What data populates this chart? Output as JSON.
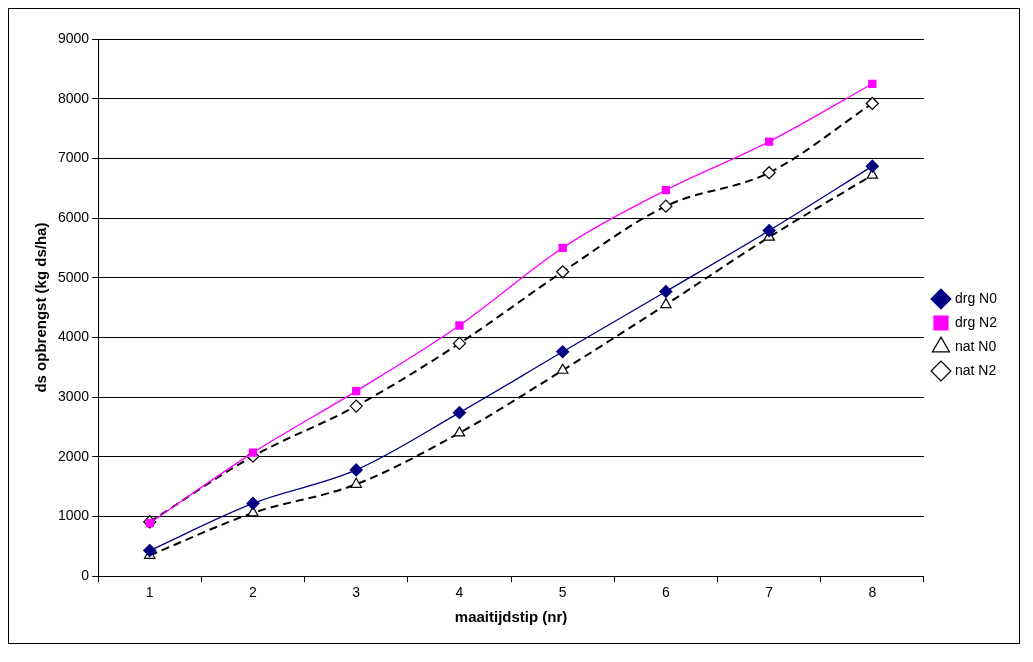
{
  "chart_data": {
    "type": "line",
    "xlabel": "maaitijdstip (nr)",
    "ylabel": "ds opbrengst (kg ds/ha)",
    "categories": [
      "1",
      "2",
      "3",
      "4",
      "5",
      "6",
      "7",
      "8"
    ],
    "ylim": [
      0,
      9000
    ],
    "yticks": [
      0,
      1000,
      2000,
      3000,
      4000,
      5000,
      6000,
      7000,
      8000,
      9000
    ],
    "grid": "y",
    "legend": "right",
    "series": [
      {
        "name": "drg N0",
        "color": "#000080",
        "marker": "diamond",
        "line_style": "solid",
        "values": [
          430,
          1220,
          1780,
          2740,
          3760,
          4770,
          5790,
          6870
        ]
      },
      {
        "name": "drg N2",
        "color": "#ff00ff",
        "marker": "square",
        "line_style": "solid",
        "values": [
          890,
          2070,
          3100,
          4200,
          5500,
          6470,
          7280,
          8250
        ]
      },
      {
        "name": "nat N0",
        "color": "#000000",
        "marker": "triangle",
        "line_style": "dashed",
        "values": [
          350,
          1060,
          1540,
          2400,
          3450,
          4550,
          5680,
          6720
        ]
      },
      {
        "name": "nat N2",
        "color": "#000000",
        "marker": "diamond",
        "line_style": "dashed",
        "values": [
          910,
          2010,
          2850,
          3900,
          5100,
          6200,
          6760,
          7920
        ]
      }
    ]
  }
}
